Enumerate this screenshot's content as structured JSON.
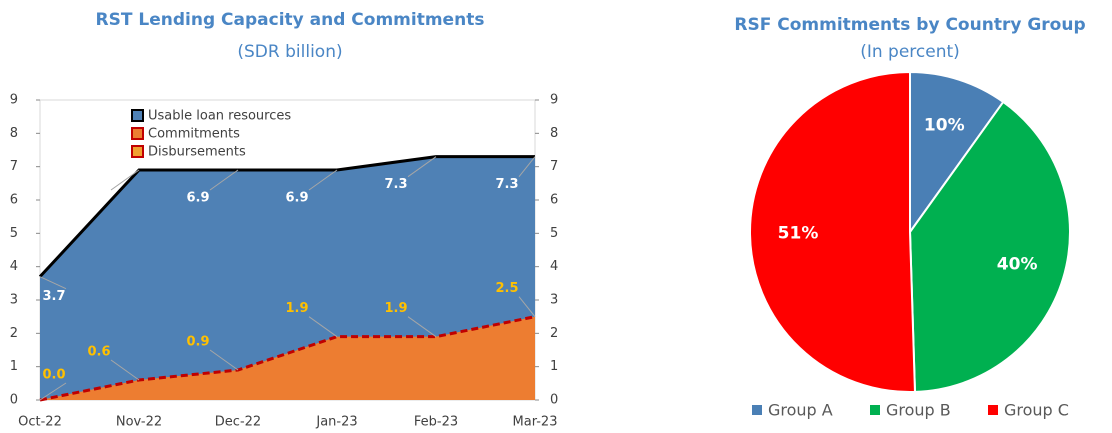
{
  "chart_data": [
    {
      "type": "area",
      "title": "RST Lending Capacity and Commitments",
      "subtitle": "(SDR billion)",
      "categories": [
        "Oct-22",
        "Nov-22",
        "Dec-22",
        "Jan-23",
        "Feb-23",
        "Mar-23"
      ],
      "series": [
        {
          "name": "Usable loan resources",
          "color": "#4f81b5",
          "line_color": "#000000",
          "label_color": "#ffffff",
          "values": [
            3.7,
            6.9,
            6.9,
            6.9,
            7.3,
            7.3
          ]
        },
        {
          "name": "Commitments",
          "color": "#ed7d31",
          "line_color": "#c00000",
          "label_color": "#ffc000",
          "values": [
            0.0,
            0.6,
            0.9,
            1.9,
            1.9,
            2.5
          ],
          "value_labels": [
            "0.0",
            "0.6",
            "0.9",
            "1.9",
            "1.9",
            "2.5"
          ]
        },
        {
          "name": "Disbursements",
          "color": "#f0a030",
          "line_color": "#c00000",
          "label_color": "#ffc000",
          "values": [
            null,
            null,
            null,
            null,
            null,
            null
          ]
        }
      ],
      "ylim": [
        0,
        9
      ],
      "yticks": [
        0,
        1,
        2,
        3,
        4,
        5,
        6,
        7,
        8,
        9
      ],
      "y2lim": [
        0,
        9
      ],
      "y2ticks": [
        0,
        1,
        2,
        3,
        4,
        5,
        6,
        7,
        8,
        9
      ],
      "legend": "top"
    },
    {
      "type": "pie",
      "title": "RSF Commitments by Country Group",
      "subtitle": "(In percent)",
      "categories": [
        "Group A",
        "Group B",
        "Group C"
      ],
      "values": [
        10,
        40,
        51
      ],
      "value_labels": [
        "10%",
        "40%",
        "51%"
      ],
      "colors": [
        "#4a7fb5",
        "#00b050",
        "#ff0000"
      ],
      "legend": "bottom"
    }
  ]
}
